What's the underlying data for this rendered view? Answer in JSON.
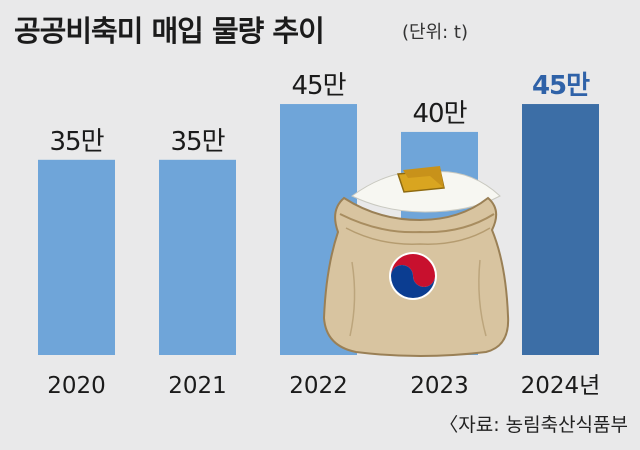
{
  "title": "공공비축미 매입 물량 추이",
  "unit": "(단위: t)",
  "source": "〈자료: 농림축산식품부",
  "colors": {
    "bar": "#6fa5d9",
    "highlight_bar": "#3c6ea6",
    "highlight_label": "#2f62a8",
    "background": "#e9e9ea"
  },
  "chart_data": {
    "type": "bar",
    "title": "공공비축미 매입 물량 추이",
    "categories": [
      "2020",
      "2021",
      "2022",
      "2023",
      "2024년"
    ],
    "values": [
      35,
      35,
      45,
      40,
      45
    ],
    "data_labels": [
      "35만",
      "35만",
      "45만",
      "40만",
      "45만"
    ],
    "highlight_index": 4,
    "ylim": [
      0,
      52
    ],
    "grid": false,
    "legend": "none"
  },
  "decoration": {
    "icon": "rice-sack-icon"
  }
}
